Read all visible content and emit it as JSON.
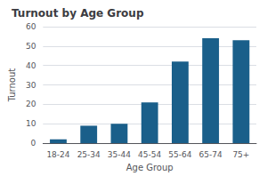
{
  "chart_data": {
    "type": "bar",
    "title": "Turnout by Age Group",
    "categories": [
      "18-24",
      "25-34",
      "35-44",
      "45-54",
      "55-64",
      "65-74",
      "75+"
    ],
    "values": [
      2,
      9,
      10,
      21,
      42,
      54,
      53
    ],
    "color": "#1a5f8a",
    "xlabel": "Age Group",
    "ylabel": "Turnout",
    "ylim": [
      0,
      60
    ],
    "yticks": [
      0,
      10,
      20,
      30,
      40,
      50,
      60
    ],
    "grid": true
  }
}
